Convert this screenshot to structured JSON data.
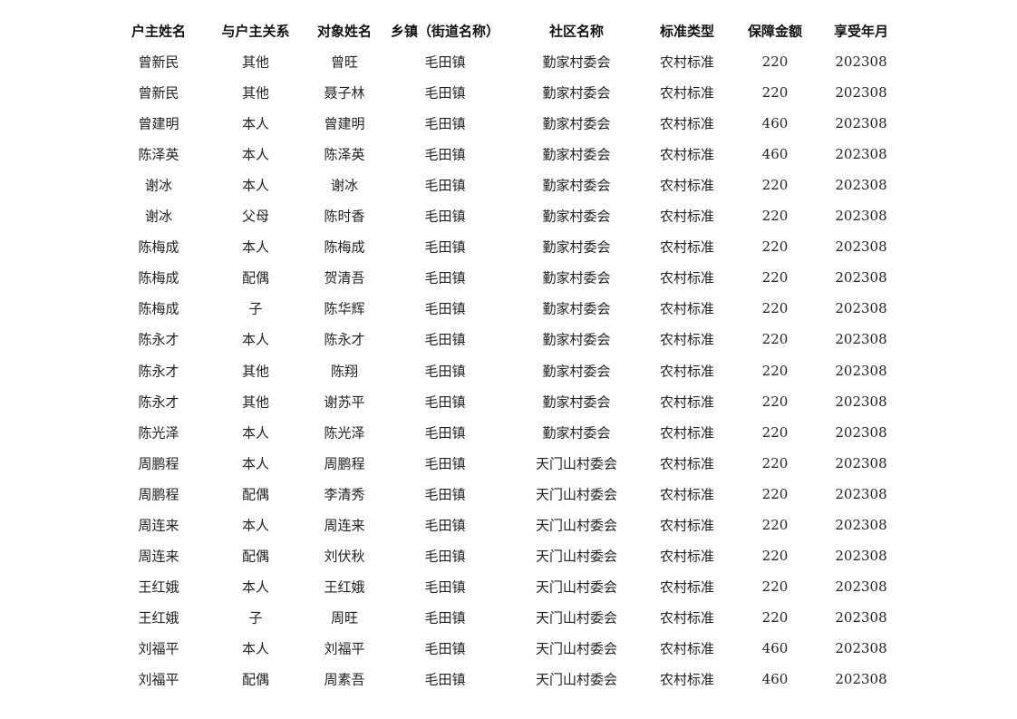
{
  "table": {
    "headers": [
      "户主姓名",
      "与户主关系",
      "对象姓名",
      "乡镇（街道名称）",
      "社区名称",
      "标准类型",
      "保障金额",
      "享受年月"
    ],
    "rows": [
      [
        "曾新民",
        "其他",
        "曾旺",
        "毛田镇",
        "勤家村委会",
        "农村标准",
        "220",
        "202308"
      ],
      [
        "曾新民",
        "其他",
        "聂子林",
        "毛田镇",
        "勤家村委会",
        "农村标准",
        "220",
        "202308"
      ],
      [
        "曾建明",
        "本人",
        "曾建明",
        "毛田镇",
        "勤家村委会",
        "农村标准",
        "460",
        "202308"
      ],
      [
        "陈泽英",
        "本人",
        "陈泽英",
        "毛田镇",
        "勤家村委会",
        "农村标准",
        "460",
        "202308"
      ],
      [
        "谢冰",
        "本人",
        "谢冰",
        "毛田镇",
        "勤家村委会",
        "农村标准",
        "220",
        "202308"
      ],
      [
        "谢冰",
        "父母",
        "陈时香",
        "毛田镇",
        "勤家村委会",
        "农村标准",
        "220",
        "202308"
      ],
      [
        "陈梅成",
        "本人",
        "陈梅成",
        "毛田镇",
        "勤家村委会",
        "农村标准",
        "220",
        "202308"
      ],
      [
        "陈梅成",
        "配偶",
        "贺清吾",
        "毛田镇",
        "勤家村委会",
        "农村标准",
        "220",
        "202308"
      ],
      [
        "陈梅成",
        "子",
        "陈华辉",
        "毛田镇",
        "勤家村委会",
        "农村标准",
        "220",
        "202308"
      ],
      [
        "陈永才",
        "本人",
        "陈永才",
        "毛田镇",
        "勤家村委会",
        "农村标准",
        "220",
        "202308"
      ],
      [
        "陈永才",
        "其他",
        "陈翔",
        "毛田镇",
        "勤家村委会",
        "农村标准",
        "220",
        "202308"
      ],
      [
        "陈永才",
        "其他",
        "谢苏平",
        "毛田镇",
        "勤家村委会",
        "农村标准",
        "220",
        "202308"
      ],
      [
        "陈光泽",
        "本人",
        "陈光泽",
        "毛田镇",
        "勤家村委会",
        "农村标准",
        "220",
        "202308"
      ],
      [
        "周鹏程",
        "本人",
        "周鹏程",
        "毛田镇",
        "天门山村委会",
        "农村标准",
        "220",
        "202308"
      ],
      [
        "周鹏程",
        "配偶",
        "李清秀",
        "毛田镇",
        "天门山村委会",
        "农村标准",
        "220",
        "202308"
      ],
      [
        "周连来",
        "本人",
        "周连来",
        "毛田镇",
        "天门山村委会",
        "农村标准",
        "220",
        "202308"
      ],
      [
        "周连来",
        "配偶",
        "刘伏秋",
        "毛田镇",
        "天门山村委会",
        "农村标准",
        "220",
        "202308"
      ],
      [
        "王红娥",
        "本人",
        "王红娥",
        "毛田镇",
        "天门山村委会",
        "农村标准",
        "220",
        "202308"
      ],
      [
        "王红娥",
        "子",
        "周旺",
        "毛田镇",
        "天门山村委会",
        "农村标准",
        "220",
        "202308"
      ],
      [
        "刘福平",
        "本人",
        "刘福平",
        "毛田镇",
        "天门山村委会",
        "农村标准",
        "460",
        "202308"
      ],
      [
        "刘福平",
        "配偶",
        "周素吾",
        "毛田镇",
        "天门山村委会",
        "农村标准",
        "460",
        "202308"
      ]
    ]
  }
}
